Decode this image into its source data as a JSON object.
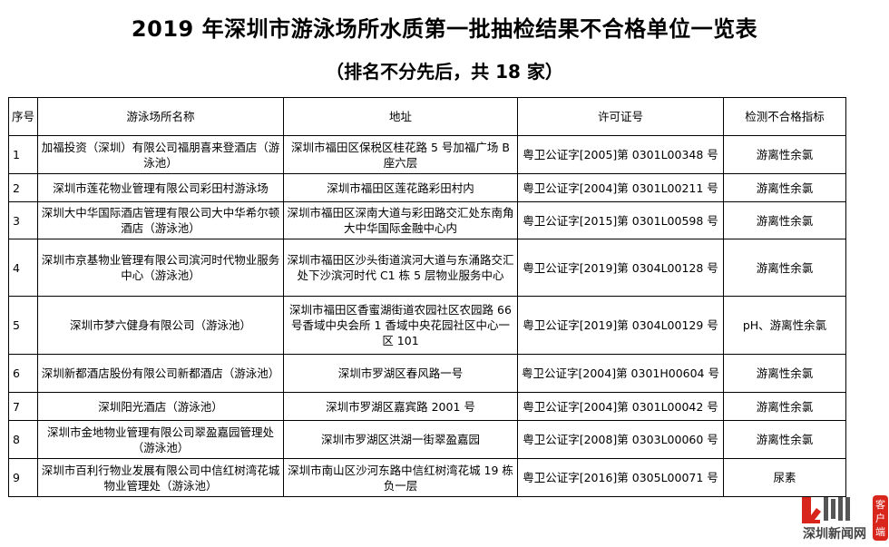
{
  "title": "2019 年深圳市游泳场所水质第一批抽检结果不合格单位一览表",
  "subtitle": "（排名不分先后，共 18 家）",
  "table": {
    "headers": [
      "序号",
      "游泳场所名称",
      "地址",
      "许可证号",
      "检测不合格指标"
    ],
    "rows": [
      {
        "no": "1",
        "name": "加福投资（深圳）有限公司福朋喜来登酒店（游泳池）",
        "address": "深圳市福田区保税区桂花路 5 号加福广场 B 座六层",
        "license": "粤卫公证字[2005]第 0301L00348 号",
        "item": "游离性余氯"
      },
      {
        "no": "2",
        "name": "深圳市莲花物业管理有限公司彩田村游泳场",
        "address": "深圳市福田区莲花路彩田村内",
        "license": "粤卫公证字[2004]第 0301L00211 号",
        "item": "游离性余氯"
      },
      {
        "no": "3",
        "name": "深圳大中华国际酒店管理有限公司大中华希尔顿酒店（游泳池）",
        "address": "深圳市福田区深南大道与彩田路交汇处东南角大中华国际金融中心内",
        "license": "粤卫公证字[2015]第 0301L00598 号",
        "item": "游离性余氯"
      },
      {
        "no": "4",
        "name": "深圳市京基物业管理有限公司滨河时代物业服务中心（游泳池）",
        "address": "深圳市福田区沙头街道滨河大道与东涌路交汇处下沙滨河时代 C1 栋 5 层物业服务中心",
        "license": "粤卫公证字[2019]第 0304L00128 号",
        "item": "游离性余氯"
      },
      {
        "no": "5",
        "name": "深圳市梦六健身有限公司（游泳池）",
        "address": "深圳市福田区香蜜湖街道农园社区农园路 66 号香域中央会所 1 香域中央花园社区中心一区 101",
        "license": "粤卫公证字[2019]第 0304L00129 号",
        "item": "pH、游离性余氯"
      },
      {
        "no": "6",
        "name": "深圳新都酒店股份有限公司新都酒店（游泳池）",
        "address": "深圳市罗湖区春风路一号",
        "license": "粤卫公证字[2004]第 0301H00604 号",
        "item": "游离性余氯"
      },
      {
        "no": "7",
        "name": "深圳阳光酒店（游泳池）",
        "address": "深圳市罗湖区嘉宾路 2001 号",
        "license": "粤卫公证字[2004]第 0301L00042 号",
        "item": "游离性余氯"
      },
      {
        "no": "8",
        "name": "深圳市金地物业管理有限公司翠盈嘉园管理处（游泳池）",
        "address": "深圳市罗湖区洪湖一街翠盈嘉园",
        "license": "粤卫公证字[2008]第 0303L00060 号",
        "item": "游离性余氯"
      },
      {
        "no": "9",
        "name": "深圳市百利行物业发展有限公司中信红树湾花城物业管理处（游泳池）",
        "address": "深圳市南山区沙河东路中信红树湾花城 19 栋负一层",
        "license": "粤卫公证字[2016]第 0305L00071 号",
        "item": "尿素"
      }
    ]
  },
  "watermark": {
    "logo_text": "圳",
    "brand": "深圳新闻网",
    "tag": "客户端",
    "colors": {
      "red": "#d9261c",
      "gray": "#555555"
    }
  }
}
